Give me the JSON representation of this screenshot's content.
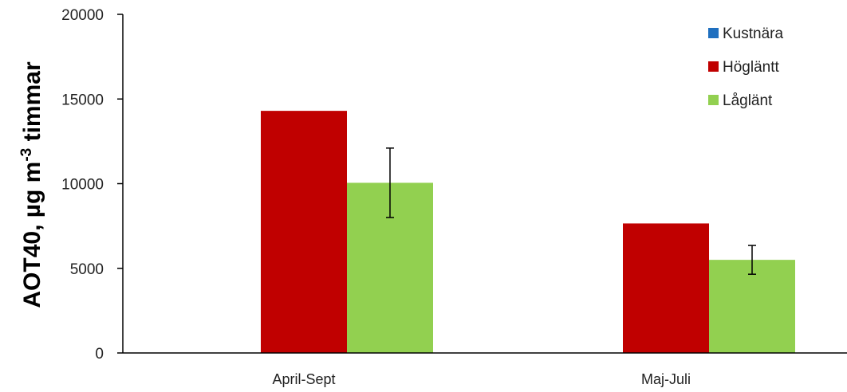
{
  "chart_data": {
    "type": "bar",
    "categories": [
      "April-Sept",
      "Maj-Juli"
    ],
    "series": [
      {
        "name": "Kustnära",
        "color": "#1f6fbf",
        "values": [
          0,
          0
        ]
      },
      {
        "name": "Högläntt",
        "color": "#c00000",
        "values": [
          14300,
          7650
        ]
      },
      {
        "name": "Låglänt",
        "color": "#92d050",
        "values": [
          10050,
          5500
        ],
        "error": [
          2050,
          850
        ]
      }
    ],
    "ylabel": {
      "main": "AOT40, µg m",
      "sup": "-3",
      "tail": " timmar"
    },
    "ylim": [
      0,
      20000
    ],
    "yticks": [
      0,
      5000,
      10000,
      15000,
      20000
    ],
    "legend_position": "top-right",
    "grid": false
  }
}
